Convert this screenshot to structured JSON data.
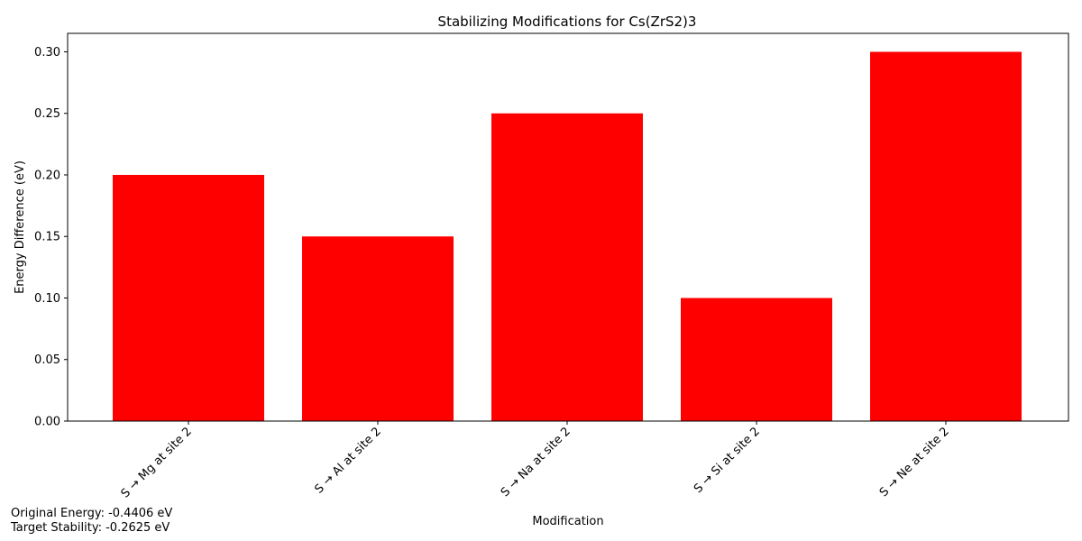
{
  "chart_data": {
    "type": "bar",
    "title": "Stabilizing Modifications for Cs(ZrS2)3",
    "xlabel": "Modification",
    "ylabel": "Energy Difference (eV)",
    "categories": [
      "S → Mg at site 2",
      "S → Al at site 2",
      "S → Na at site 2",
      "S → Si at site 2",
      "S → Ne at site 2"
    ],
    "values": [
      0.2,
      0.15,
      0.25,
      0.1,
      0.3
    ],
    "ylim": [
      0,
      0.315
    ],
    "yticks": [
      "0.00",
      "0.05",
      "0.10",
      "0.15",
      "0.20",
      "0.25",
      "0.30"
    ],
    "bar_color": "#ff0000",
    "grid": false
  },
  "annotations": {
    "original_energy": "Original Energy: -0.4406 eV",
    "target_stability": "Target Stability: -0.2625 eV"
  }
}
